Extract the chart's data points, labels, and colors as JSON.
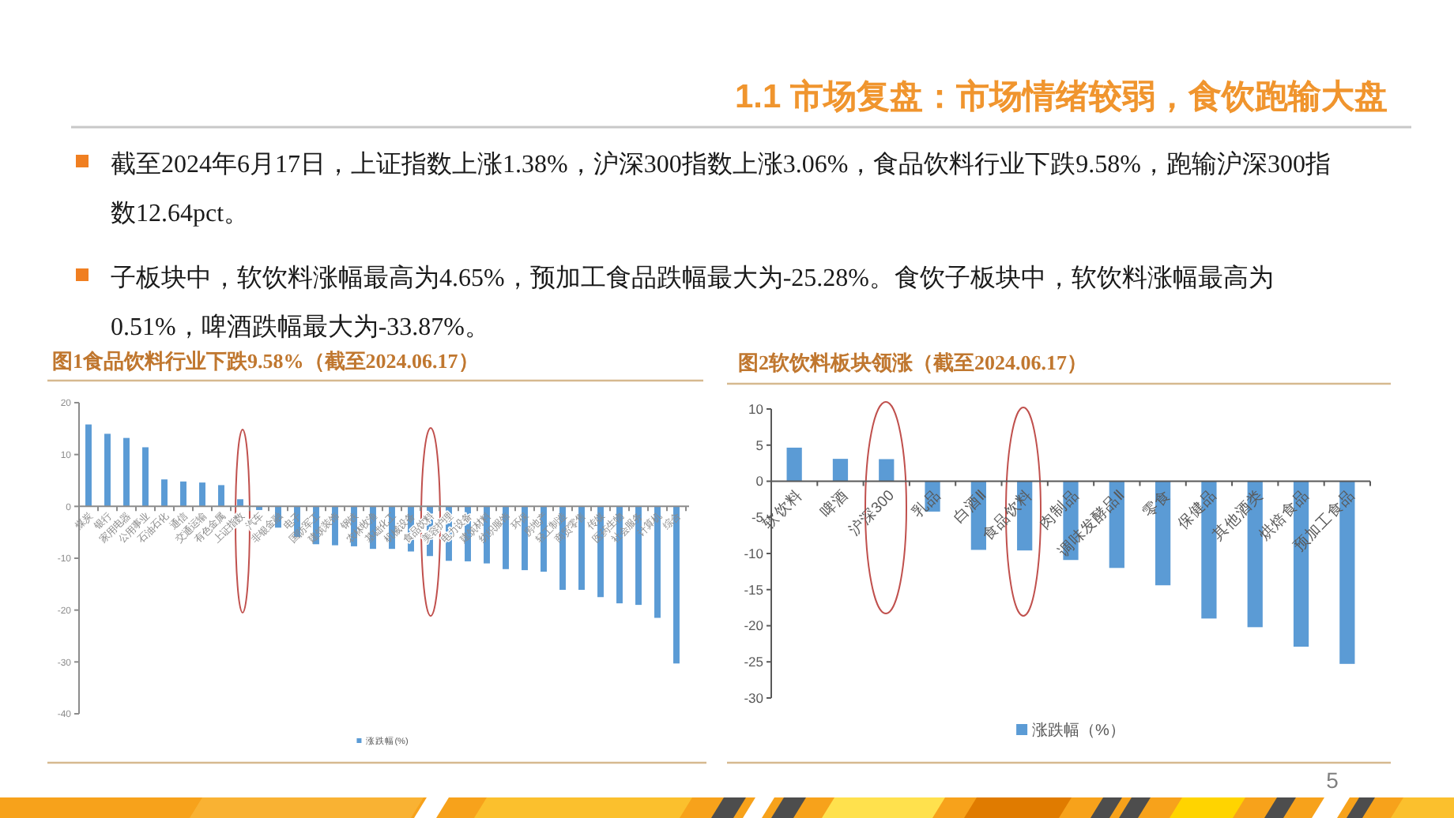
{
  "chart_data": [
    {
      "type": "other",
      "title": "1.1 市场复盘：市场情绪较弱，食饮跑输大盘",
      "annotations": [
        "截至2024年6月17日，上证指数上涨1.38%，沪深300指数上涨3.06%，食品饮料行业下跌9.58%，跑输沪深300指数12.64pct。",
        "子板块中，软饮料涨幅最高为4.65%，预加工食品跌幅最大为-25.28%。食饮子板块中，软饮料涨幅最高为0.51%，啤酒跌幅最大为-33.87%。",
        "5"
      ]
    },
    {
      "type": "bar",
      "title": "图1食品饮料行业下跌9.58%（截至2024.06.17）",
      "categories": [
        "煤炭",
        "银行",
        "家用电器",
        "公用事业",
        "石油石化",
        "通信",
        "交通运输",
        "有色金属",
        "上证指数",
        "汽车",
        "非银金融",
        "电子",
        "国防军工",
        "建筑装饰",
        "钢铁",
        "农林牧渔",
        "基础化工",
        "机械设备",
        "食品饮料",
        "美容护理",
        "电力设备",
        "建筑材料",
        "纺织服饰",
        "环保",
        "房地产",
        "轻工制造",
        "商贸零售",
        "传媒",
        "医药生物",
        "社会服务",
        "计算机",
        "综合"
      ],
      "series": [
        {
          "name": "涨跌幅(%)",
          "color": "#5b9bd5",
          "values": [
            15.8,
            14.0,
            13.2,
            11.4,
            5.2,
            4.8,
            4.6,
            4.1,
            1.38,
            -0.7,
            -4.1,
            -5.9,
            -7.3,
            -7.5,
            -7.7,
            -8.2,
            -8.2,
            -8.7,
            -9.58,
            -10.5,
            -10.6,
            -11.0,
            -12.1,
            -12.3,
            -12.6,
            -16.1,
            -16.1,
            -17.5,
            -18.7,
            -19.0,
            -21.5,
            -30.3
          ]
        }
      ],
      "ylim": [
        -40,
        20
      ],
      "yticks": [
        -40,
        -30,
        -20,
        -10,
        0,
        10,
        20
      ],
      "legend": "bottom"
    },
    {
      "type": "bar",
      "title": "图2软饮料板块领涨（截至2024.06.17）",
      "categories": [
        "软饮料",
        "啤酒",
        "沪深300",
        "乳品",
        "白酒Ⅱ",
        "食品饮料",
        "肉制品",
        "调味发酵品Ⅱ",
        "零食",
        "保健品",
        "其他酒类",
        "烘焙食品",
        "预加工食品"
      ],
      "series": [
        {
          "name": "涨跌幅（%）",
          "color": "#5b9bd5",
          "values": [
            4.65,
            3.1,
            3.06,
            -4.2,
            -9.5,
            -9.58,
            -10.9,
            -12.0,
            -14.4,
            -19.0,
            -20.2,
            -22.9,
            -25.28
          ]
        }
      ],
      "ylim": [
        -30,
        10
      ],
      "yticks": [
        -30,
        -25,
        -20,
        -15,
        -10,
        -5,
        0,
        5,
        10
      ],
      "legend": "bottom"
    }
  ]
}
